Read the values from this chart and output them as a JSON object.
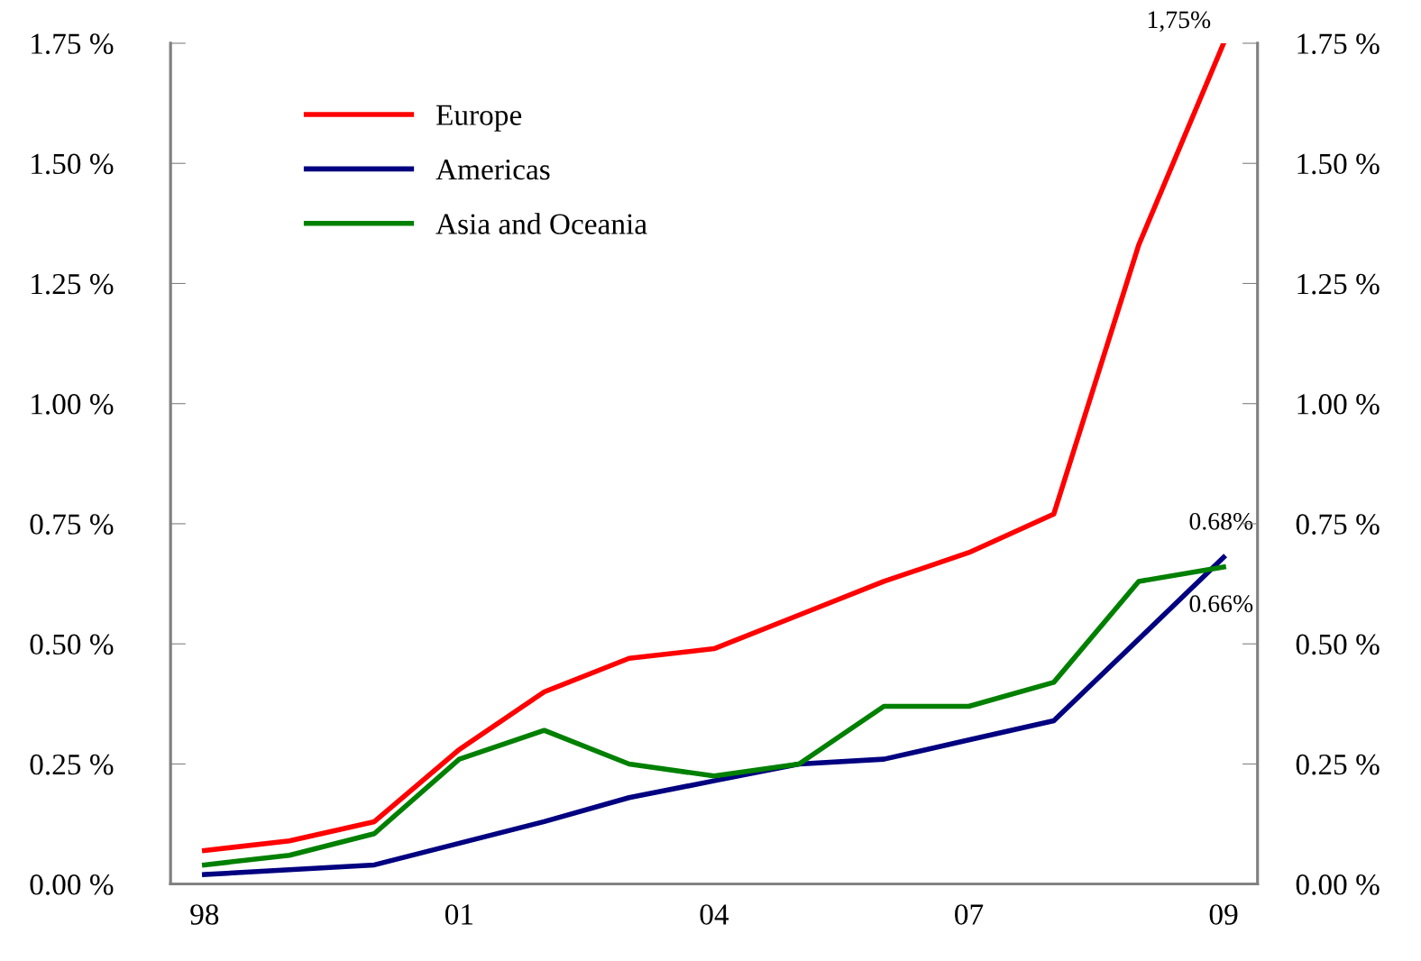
{
  "chart_data": {
    "type": "line",
    "categories": [
      "98",
      null,
      null,
      "01",
      null,
      null,
      "04",
      null,
      null,
      "07",
      null,
      null,
      "09"
    ],
    "series": [
      {
        "name": "Europe",
        "color": "#ff0000",
        "values": [
          0.07,
          0.09,
          0.13,
          0.28,
          0.4,
          0.47,
          0.49,
          0.56,
          0.63,
          0.69,
          0.77,
          1.33,
          1.75
        ]
      },
      {
        "name": "Americas",
        "color": "#000080",
        "values": [
          0.02,
          0.03,
          0.04,
          0.085,
          0.13,
          0.18,
          0.215,
          0.25,
          0.26,
          0.3,
          0.34,
          0.51,
          0.68
        ]
      },
      {
        "name": "Asia and Oceania",
        "color": "#008000",
        "values": [
          0.04,
          0.06,
          0.105,
          0.26,
          0.32,
          0.25,
          0.225,
          0.25,
          0.37,
          0.37,
          0.42,
          0.63,
          0.66
        ]
      }
    ],
    "ylim": [
      0,
      1.75
    ],
    "yticks": [
      {
        "value": 0,
        "label": "0.00 %"
      },
      {
        "value": 0.25,
        "label": "0.25 %"
      },
      {
        "value": 0.5,
        "label": "0.50 %"
      },
      {
        "value": 0.75,
        "label": "0.75 %"
      },
      {
        "value": 1.0,
        "label": "1.00 %"
      },
      {
        "value": 1.25,
        "label": "1.25 %"
      },
      {
        "value": 1.5,
        "label": "1.50 %"
      },
      {
        "value": 1.75,
        "label": "1.75 %"
      }
    ],
    "y2lim": [
      0,
      1.75
    ],
    "y2ticks": [
      {
        "value": 0,
        "label": "0.00 %"
      },
      {
        "value": 0.25,
        "label": "0.25 %"
      },
      {
        "value": 0.5,
        "label": "0.50 %"
      },
      {
        "value": 0.75,
        "label": "0.75 %"
      },
      {
        "value": 1.0,
        "label": "1.00 %"
      },
      {
        "value": 1.25,
        "label": "1.25 %"
      },
      {
        "value": 1.5,
        "label": "1.50 %"
      },
      {
        "value": 1.75,
        "label": "1.75 %"
      }
    ],
    "annotations": [
      {
        "text": "1,75%",
        "x": "09",
        "y": 1.75
      },
      {
        "text": "0.68%",
        "x": "09",
        "y": 0.68
      },
      {
        "text": "0.66%",
        "x": "09",
        "y": 0.66
      }
    ],
    "grid": false,
    "legend": "top left",
    "marker": "none",
    "line_style": "solid"
  }
}
